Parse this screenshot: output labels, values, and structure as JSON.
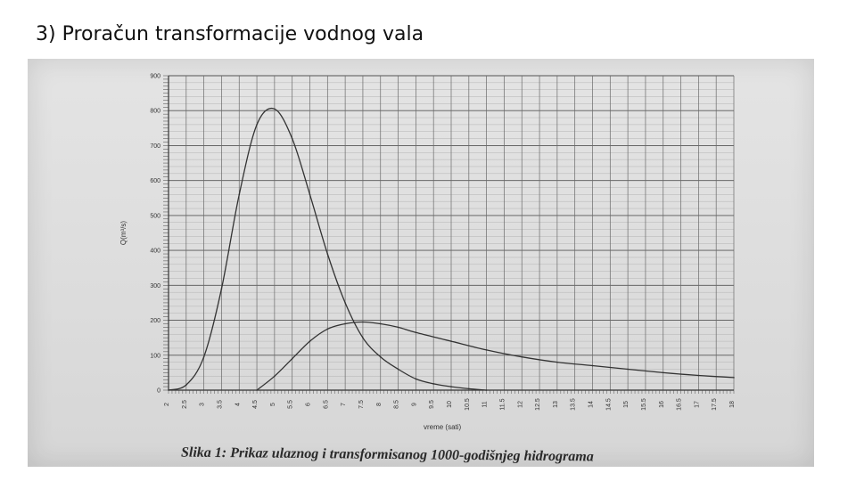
{
  "slide": {
    "title": "3) Proračun transformacije vodnog vala"
  },
  "figure": {
    "caption": "Slika 1: Prikaz ulaznog i transformisanog 1000-godišnjeg hidrograma"
  },
  "chart_data": {
    "type": "line",
    "xlabel": "vreme (sati)",
    "ylabel": "Q(m³/s)",
    "xlim": [
      2,
      18
    ],
    "ylim": [
      0,
      900
    ],
    "xticks": [
      "2",
      "2.5",
      "3",
      "3.5",
      "4",
      "4.5",
      "5",
      "5.5",
      "6",
      "6.5",
      "7",
      "7.5",
      "8",
      "8.5",
      "9",
      "9.5",
      "10",
      "10.5",
      "11",
      "11.5",
      "12",
      "12.5",
      "13",
      "13.5",
      "14",
      "14.5",
      "15",
      "15.5",
      "16",
      "16.5",
      "17",
      "17.5",
      "18"
    ],
    "yticks": [
      "0",
      "100",
      "200",
      "300",
      "400",
      "500",
      "600",
      "700",
      "800",
      "900"
    ],
    "grid": true,
    "series": [
      {
        "color": "#333333",
        "x": [
          2,
          2.5,
          3,
          3.5,
          4,
          4.5,
          5,
          5.5,
          6,
          6.5,
          7,
          7.5,
          8,
          8.5,
          9,
          9.5,
          10,
          10.5,
          11
        ],
        "y": [
          0,
          15,
          95,
          290,
          560,
          760,
          805,
          720,
          560,
          390,
          250,
          150,
          95,
          60,
          32,
          18,
          10,
          4,
          0
        ]
      },
      {
        "color": "#333333",
        "x": [
          4.5,
          5,
          5.5,
          6,
          6.5,
          7,
          7.5,
          8,
          8.5,
          9,
          10,
          11,
          12,
          13,
          14,
          15,
          16,
          17,
          18
        ],
        "y": [
          0,
          40,
          90,
          140,
          175,
          190,
          195,
          190,
          180,
          165,
          140,
          115,
          95,
          80,
          70,
          60,
          50,
          42,
          36
        ]
      }
    ]
  }
}
